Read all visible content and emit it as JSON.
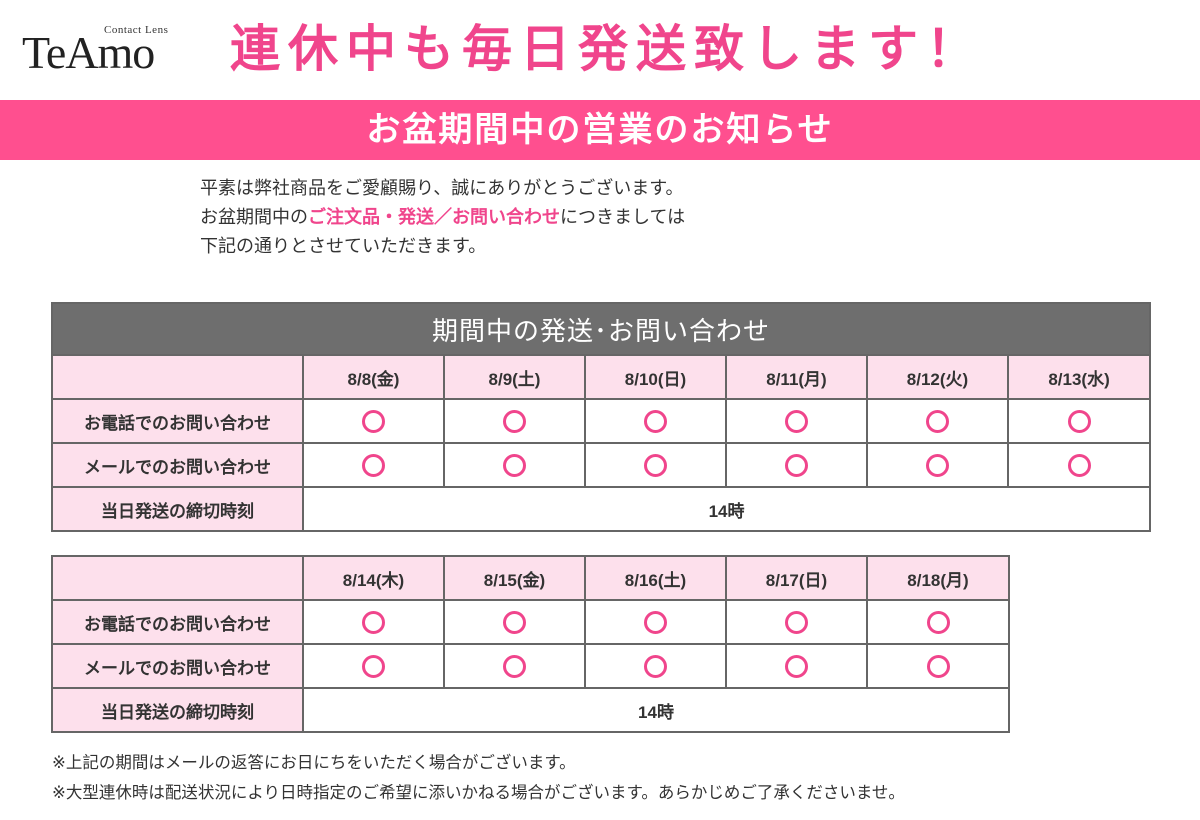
{
  "logo": {
    "sub": "Contact Lens",
    "main": "TeAmo"
  },
  "headline": "連休中も毎日発送致します！",
  "banner": "お盆期間中の営業のお知らせ",
  "intro": {
    "line1": "平素は弊社商品をご愛顧賜り、誠にありがとうございます。",
    "line2_pre": "お盆期間中の",
    "line2_highlight": "ご注文品・発送／お問い合わせ",
    "line2_post": "につきましては",
    "line3": "下記の通りとさせていただきます。"
  },
  "table1": {
    "caption": "期間中の発送･お問い合わせ",
    "dates": [
      "8/8(金)",
      "8/9(土)",
      "8/10(日)",
      "8/11(月)",
      "8/12(火)",
      "8/13(水)"
    ],
    "rows": [
      "お電話でのお問い合わせ",
      "メールでのお問い合わせ"
    ],
    "cutoff_label": "当日発送の締切時刻",
    "cutoff_value": "14時"
  },
  "table2": {
    "dates": [
      "8/14(木)",
      "8/15(金)",
      "8/16(土)",
      "8/17(日)",
      "8/18(月)"
    ],
    "rows": [
      "お電話でのお問い合わせ",
      "メールでのお問い合わせ"
    ],
    "cutoff_label": "当日発送の締切時刻",
    "cutoff_value": "14時"
  },
  "notes": [
    "※上記の期間はメールの返答にお日にちをいただく場合がございます。",
    "※大型連休時は配送状況により日時指定のご希望に添いかねる場合がございます。あらかじめご了承くださいませ。"
  ],
  "colors": {
    "accent": "#f0458c",
    "banner": "#ff4f8f",
    "cell_pink": "#fde0ec",
    "caption_gray": "#6e6e6e"
  },
  "icons": {
    "available": "circle-mark-icon"
  }
}
